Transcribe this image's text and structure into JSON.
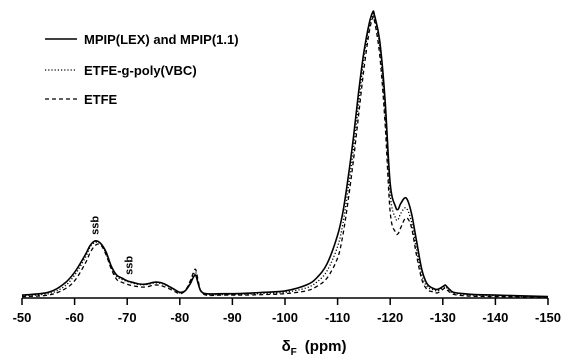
{
  "chart_data": {
    "type": "line",
    "xlabel_symbol": "δ",
    "xlabel_subscript": "F",
    "xlabel_unit": "(ppm)",
    "ylabel": "",
    "title": "",
    "xlim": [
      -50,
      -150
    ],
    "ylim": [
      0,
      100
    ],
    "axis_reversed": true,
    "grid": false,
    "legend_position": "top-left",
    "x_ticks": [
      -50,
      -60,
      -70,
      -80,
      -90,
      -100,
      -110,
      -120,
      -130,
      -140,
      -150
    ],
    "x_tick_labels": [
      "-50",
      "-60",
      "-70",
      "-80",
      "-90",
      "-100",
      "-110",
      "-120",
      "-130",
      "-140",
      "-150"
    ],
    "series": [
      {
        "name": "MPIP(LEX) and MPIP(1.1)",
        "style": "solid",
        "color": "#000000",
        "x": [
          -50,
          -55,
          -58,
          -60,
          -62,
          -63,
          -64,
          -65,
          -66,
          -67,
          -68,
          -69,
          -70,
          -71,
          -72,
          -73,
          -74,
          -75,
          -76,
          -77,
          -78,
          -79,
          -80,
          -81,
          -82,
          -82.5,
          -83,
          -83.5,
          -84,
          -85,
          -88,
          -92,
          -96,
          -100,
          -104,
          -106,
          -108,
          -110,
          -111,
          -112,
          -113,
          -114,
          -115,
          -116,
          -116.7,
          -117,
          -118,
          -119,
          -120,
          -121,
          -121.5,
          -122,
          -123,
          -124,
          -125,
          -126,
          -127,
          -128,
          -129,
          -130,
          -130.5,
          -131,
          -132,
          -134,
          -136,
          -140,
          -150
        ],
        "y": [
          1,
          2,
          5,
          9,
          15,
          18.5,
          20,
          19,
          16,
          11,
          8,
          7,
          6,
          5.5,
          5,
          4.8,
          5,
          5.5,
          5.5,
          5,
          4,
          3,
          2,
          2.5,
          5,
          7,
          8,
          5,
          2.5,
          1.5,
          1.5,
          1.6,
          2,
          2.5,
          4.5,
          7,
          12,
          22,
          30,
          42,
          56,
          72,
          86,
          96,
          100,
          99,
          90,
          70,
          40,
          32,
          31,
          33,
          35,
          30,
          20,
          10,
          5,
          3.5,
          3,
          4,
          4.5,
          3.5,
          2,
          1.5,
          1.2,
          1,
          0.5
        ]
      },
      {
        "name": "ETFE-g-poly(VBC)",
        "style": "dotted",
        "color": "#000000",
        "x": [
          -50,
          -55,
          -58,
          -60,
          -62,
          -63,
          -64,
          -65,
          -66,
          -67,
          -68,
          -69,
          -70,
          -71,
          -72,
          -73,
          -74,
          -75,
          -76,
          -77,
          -78,
          -79,
          -80,
          -81,
          -82,
          -82.5,
          -83,
          -83.5,
          -84,
          -85,
          -88,
          -92,
          -96,
          -100,
          -104,
          -106,
          -108,
          -110,
          -111,
          -112,
          -113,
          -114,
          -115,
          -116,
          -116.7,
          -117,
          -118,
          -119,
          -120,
          -121,
          -121.5,
          -122,
          -123,
          -124,
          -125,
          -126,
          -127,
          -128,
          -129,
          -130,
          -130.5,
          -131,
          -132,
          -134,
          -136,
          -140,
          -150
        ],
        "y": [
          0.8,
          1.5,
          4,
          8,
          14,
          18,
          19.5,
          19,
          15.5,
          10.5,
          7.5,
          6.5,
          5.8,
          5.2,
          4.8,
          4.6,
          4.8,
          5.2,
          5.2,
          4.8,
          3.8,
          2.8,
          1.8,
          2.5,
          5.5,
          7.8,
          9,
          5.5,
          2.5,
          1.2,
          1.2,
          1.3,
          1.6,
          2,
          3.5,
          5.5,
          9.5,
          18,
          26,
          38,
          52,
          68,
          84,
          95,
          99,
          98,
          88,
          66,
          36,
          28,
          27.5,
          29.5,
          31.5,
          27,
          17,
          8,
          4,
          3,
          2.5,
          3.5,
          4,
          3,
          1.8,
          1.2,
          1,
          0.8,
          0.4
        ]
      },
      {
        "name": "ETFE",
        "style": "dashed",
        "color": "#000000",
        "x": [
          -50,
          -55,
          -58,
          -60,
          -62,
          -63,
          -64,
          -65,
          -66,
          -67,
          -68,
          -69,
          -70,
          -71,
          -72,
          -73,
          -74,
          -75,
          -76,
          -77,
          -78,
          -79,
          -80,
          -81,
          -82,
          -82.5,
          -83,
          -83.5,
          -84,
          -85,
          -88,
          -92,
          -96,
          -100,
          -104,
          -106,
          -108,
          -110,
          -111,
          -112,
          -113,
          -114,
          -115,
          -116,
          -116.7,
          -117,
          -118,
          -119,
          -120,
          -121,
          -121.5,
          -122,
          -123,
          -124,
          -125,
          -126,
          -127,
          -128,
          -129,
          -130,
          -130.5,
          -131,
          -132,
          -134,
          -136,
          -140,
          -150
        ],
        "y": [
          0.5,
          1,
          3,
          6,
          12,
          16,
          18.5,
          18.5,
          15,
          10,
          6.5,
          5.5,
          4.8,
          4.3,
          4,
          3.8,
          4,
          4.5,
          4.5,
          4,
          3.2,
          2.3,
          1.5,
          2.5,
          6,
          8.5,
          10,
          6,
          2.5,
          1,
          1,
          1,
          1.2,
          1.5,
          2.5,
          4,
          7,
          14,
          22,
          34,
          48,
          64,
          80,
          93,
          98,
          97,
          85,
          62,
          30,
          23,
          22.5,
          24.5,
          28,
          25,
          15,
          6.5,
          3,
          2.2,
          1.8,
          3,
          3.5,
          2.5,
          1.3,
          0.8,
          0.6,
          0.5,
          0.3
        ]
      }
    ],
    "annotations": [
      {
        "text": "ssb",
        "x": -64,
        "y": 20
      },
      {
        "text": "ssb",
        "x": -70.5,
        "y": 6
      }
    ]
  }
}
